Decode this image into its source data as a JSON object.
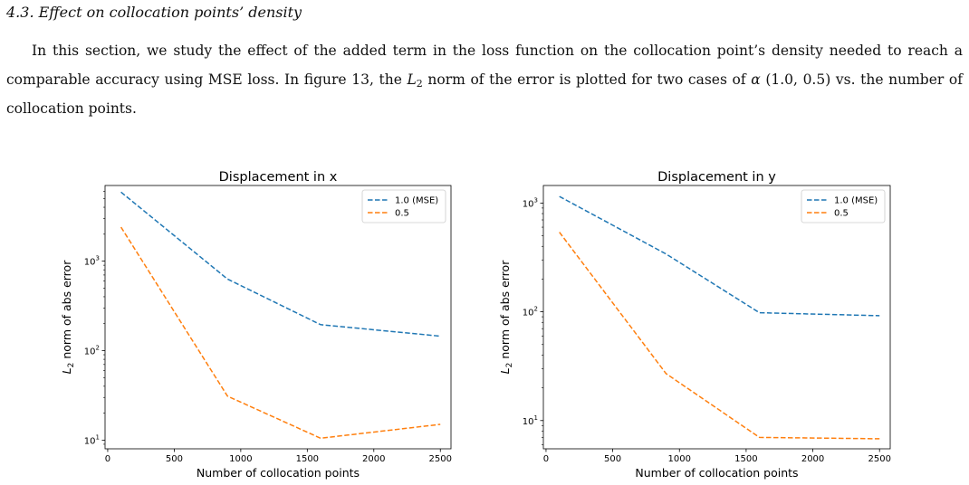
{
  "section": {
    "title": "4.3. Effect on collocation points’ density"
  },
  "paragraph": {
    "part1": "In this section, we study the effect of the added term in the loss function on the collocation point’s density needed to reach a comparable accuracy using MSE loss. In figure 13, the ",
    "norm_L": "L",
    "norm_sub": "2",
    "part2": " norm of the error is plotted for two cases of ",
    "alpha": "α",
    "part3": " (1.0, 0.5) vs. the number of collocation points."
  },
  "chart_data": [
    {
      "type": "line",
      "title": "Displacement in x",
      "xlabel": "Number of collocation points",
      "ylabel": "L2 norm of abs error",
      "yscale": "log",
      "xlim": [
        -20,
        2580
      ],
      "ylim": [
        8,
        7000
      ],
      "xticks": [
        0,
        500,
        1000,
        1500,
        2000,
        2500
      ],
      "yticks": [
        {
          "value": 10,
          "base": "10",
          "exp": "1"
        },
        {
          "value": 100,
          "base": "10",
          "exp": "2"
        },
        {
          "value": 1000,
          "base": "10",
          "exp": "3"
        }
      ],
      "legend_position": "upper right",
      "series": [
        {
          "name": "1.0 (MSE)",
          "color": "#1f77b4",
          "x": [
            100,
            900,
            1600,
            2500
          ],
          "y": [
            5900,
            630,
            195,
            145
          ]
        },
        {
          "name": "0.5",
          "color": "#ff7f0e",
          "x": [
            100,
            900,
            1600,
            2500
          ],
          "y": [
            2400,
            31,
            10.5,
            15
          ]
        }
      ]
    },
    {
      "type": "line",
      "title": "Displacement in y",
      "xlabel": "Number of collocation points",
      "ylabel": "L2 norm of abs error",
      "yscale": "log",
      "xlim": [
        -20,
        2580
      ],
      "ylim": [
        5.5,
        1450
      ],
      "xticks": [
        0,
        500,
        1000,
        1500,
        2000,
        2500
      ],
      "yticks": [
        {
          "value": 10,
          "base": "10",
          "exp": "1"
        },
        {
          "value": 100,
          "base": "10",
          "exp": "2"
        },
        {
          "value": 1000,
          "base": "10",
          "exp": "3"
        }
      ],
      "legend_position": "upper right",
      "series": [
        {
          "name": "1.0 (MSE)",
          "color": "#1f77b4",
          "x": [
            100,
            900,
            1600,
            2500
          ],
          "y": [
            1150,
            340,
            98,
            92
          ]
        },
        {
          "name": "0.5",
          "color": "#ff7f0e",
          "x": [
            100,
            900,
            1600,
            2500
          ],
          "y": [
            540,
            27,
            7.0,
            6.8
          ]
        }
      ]
    }
  ]
}
